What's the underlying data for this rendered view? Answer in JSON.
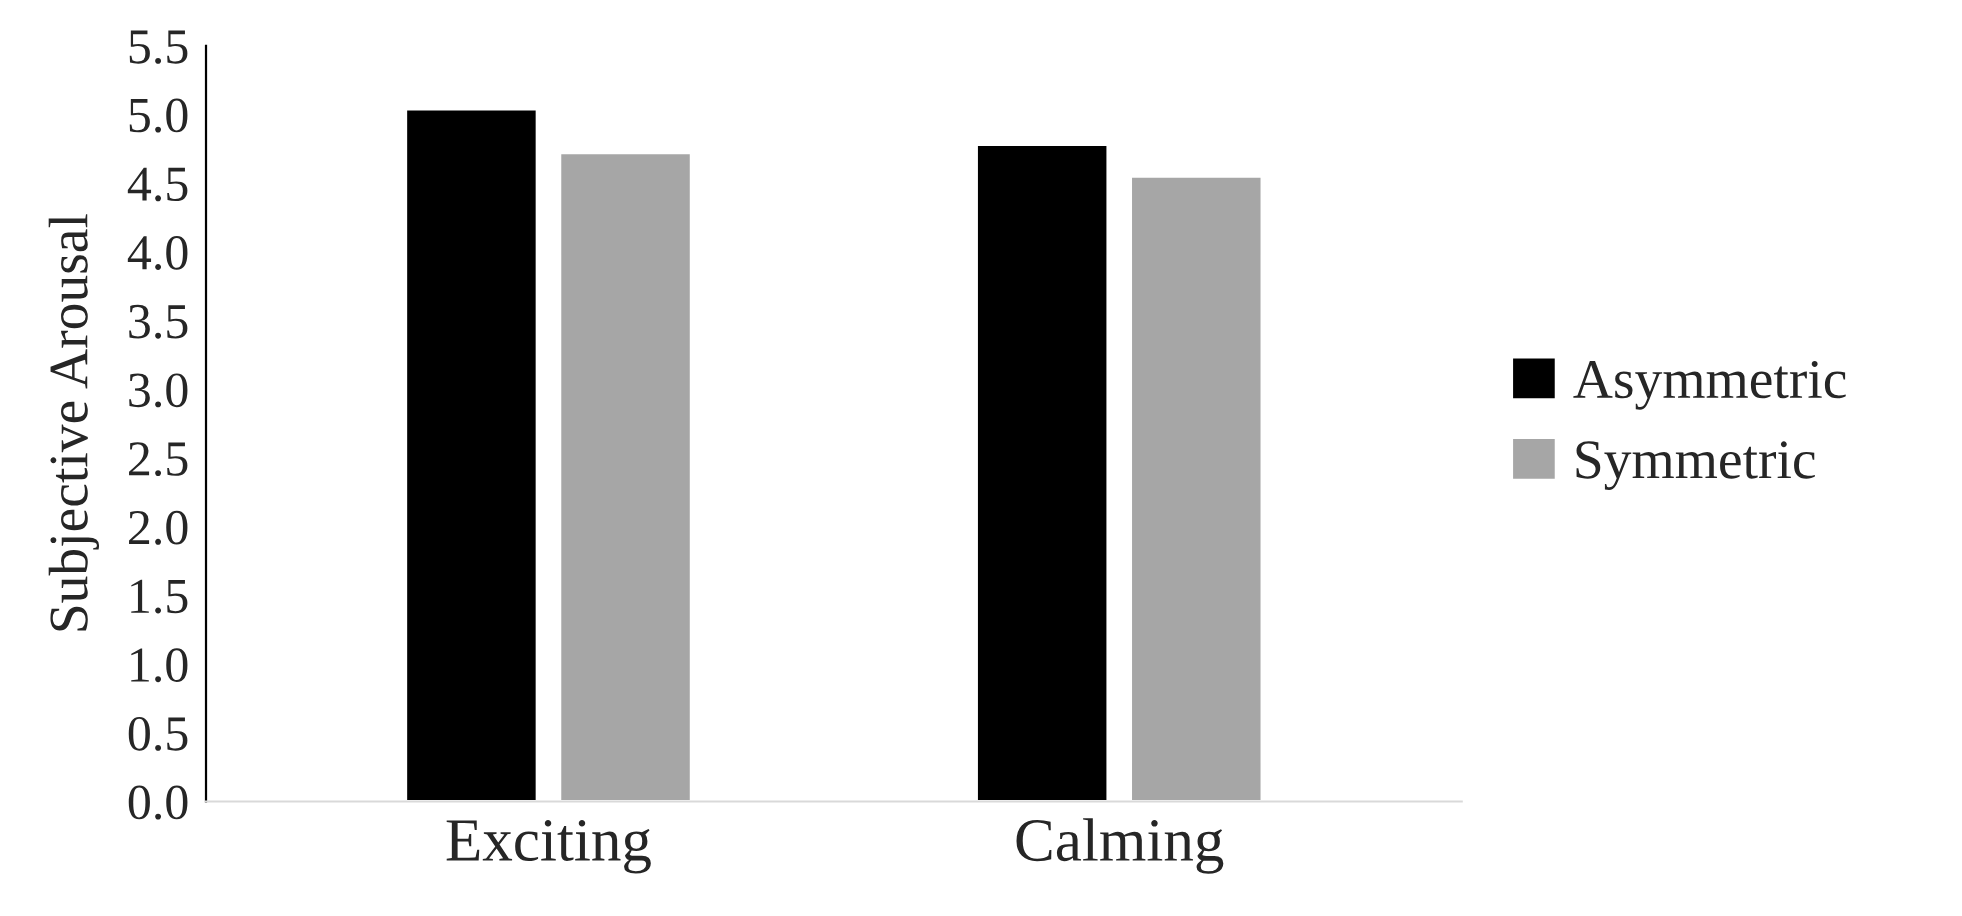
{
  "chart_data": {
    "type": "bar",
    "ylabel": "Subjective Arousal",
    "categories": [
      "Exciting",
      "Calming"
    ],
    "series": [
      {
        "name": "Asymmetric",
        "color": "#000000",
        "values": [
          5.04,
          4.78
        ]
      },
      {
        "name": "Symmetric",
        "color": "#a6a6a6",
        "values": [
          4.72,
          4.55
        ]
      }
    ],
    "ylim": [
      0,
      5.5
    ],
    "yticks": [
      {
        "value": 0,
        "label": "0.0"
      },
      0.5,
      {
        "value": 1,
        "label": "1.0"
      },
      1.5,
      {
        "value": 2,
        "label": "2.0"
      },
      2.5,
      {
        "value": 3,
        "label": "3.0"
      },
      3.5,
      {
        "value": 4,
        "label": "4.0"
      },
      4.5,
      {
        "value": 5,
        "label": "5.0"
      },
      5.5
    ],
    "grid": false,
    "legend": "right"
  }
}
